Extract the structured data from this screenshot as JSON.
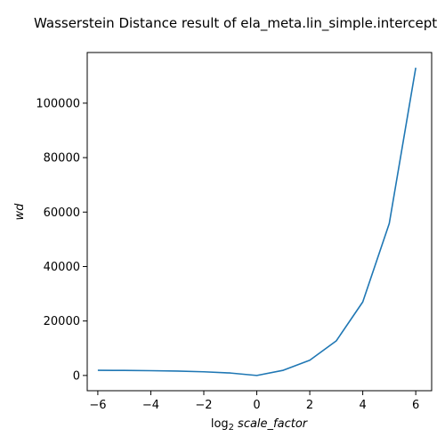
{
  "chart_data": {
    "type": "line",
    "title": "Wasserstein Distance result of ela_meta.lin_simple.intercept",
    "xlabel": "log2 scale_factor",
    "ylabel": "wd",
    "xlim": [
      -6.4,
      6.6
    ],
    "ylim": [
      -5600,
      118600
    ],
    "xticks": [
      -6,
      -4,
      -2,
      0,
      2,
      4,
      6
    ],
    "xtick_labels": [
      "−6",
      "−4",
      "−2",
      "0",
      "2",
      "4",
      "6"
    ],
    "yticks": [
      0,
      20000,
      40000,
      60000,
      80000,
      100000
    ],
    "ytick_labels": [
      "0",
      "20000",
      "40000",
      "60000",
      "80000",
      "100000"
    ],
    "grid": false,
    "series": [
      {
        "color": "#1f77b4",
        "x": [
          -6,
          -5,
          -4,
          -3,
          -2,
          -1,
          0,
          1,
          2,
          3,
          4,
          5,
          6
        ],
        "y": [
          1900,
          1850,
          1750,
          1600,
          1350,
          900,
          0,
          1900,
          5600,
          12700,
          27000,
          55800,
          113000
        ]
      }
    ]
  },
  "labels": {
    "title": "Wasserstein Distance result of ela_meta.lin_simple.intercept",
    "xlabel_prefix": "log",
    "xlabel_sub": "2",
    "xlabel_main": "scale_factor",
    "ylabel": "wd"
  }
}
